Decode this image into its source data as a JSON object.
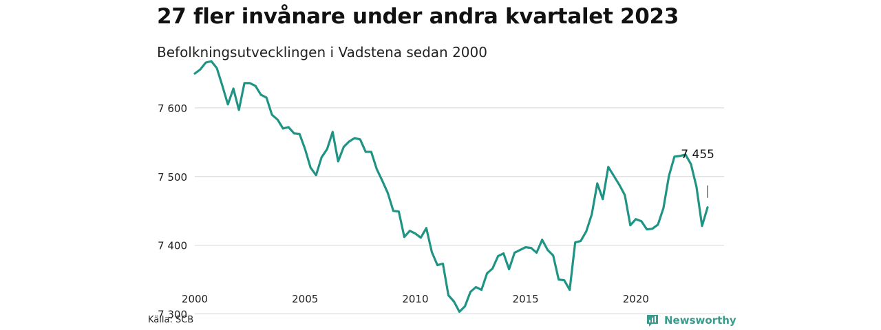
{
  "header": {
    "title": "27 fler invånare under andra kvartalet 2023",
    "subtitle": "Befolkningsutvecklingen i Vadstena sedan 2000"
  },
  "footer": {
    "source": "Källa: SCB",
    "brand": "Newsworthy",
    "brand_icon": "newsworthy-logo-icon"
  },
  "colors": {
    "line": "#1f9485",
    "grid": "#dddddd",
    "brand": "#3a9a8c"
  },
  "chart_data": {
    "type": "line",
    "title": "27 fler invånare under andra kvartalet 2023",
    "subtitle": "Befolkningsutvecklingen i Vadstena sedan 2000",
    "xlabel": "",
    "ylabel": "",
    "xlim": [
      2000,
      2024
    ],
    "ylim": [
      7290,
      7680
    ],
    "y_ticks": [
      7300,
      7400,
      7500,
      7600
    ],
    "y_tick_labels": [
      "7 300",
      "7 400",
      "7 500",
      "7 600"
    ],
    "x_ticks": [
      2000,
      2005,
      2010,
      2015,
      2020
    ],
    "x_tick_labels": [
      "2000",
      "2005",
      "2010",
      "2015",
      "2020"
    ],
    "grid": true,
    "annotation": {
      "x": 2023.25,
      "y": 7455,
      "label": "7 455"
    },
    "series": [
      {
        "x": [
          2000.0,
          2000.25,
          2000.5,
          2000.75,
          2001.0,
          2001.25,
          2001.5,
          2001.75,
          2002.0,
          2002.25,
          2002.5,
          2002.75,
          2003.0,
          2003.25,
          2003.5,
          2003.75,
          2004.0,
          2004.25,
          2004.5,
          2004.75,
          2005.0,
          2005.25,
          2005.5,
          2005.75,
          2006.0,
          2006.25,
          2006.5,
          2006.75,
          2007.0,
          2007.25,
          2007.5,
          2007.75,
          2008.0,
          2008.25,
          2008.5,
          2008.75,
          2009.0,
          2009.25,
          2009.5,
          2009.75,
          2010.0,
          2010.25,
          2010.5,
          2010.75,
          2011.0,
          2011.25,
          2011.5,
          2011.75,
          2012.0,
          2012.25,
          2012.5,
          2012.75,
          2013.0,
          2013.25,
          2013.5,
          2013.75,
          2014.0,
          2014.25,
          2014.5,
          2014.75,
          2015.0,
          2015.25,
          2015.5,
          2015.75,
          2016.0,
          2016.25,
          2016.5,
          2016.75,
          2017.0,
          2017.25,
          2017.5,
          2017.75,
          2018.0,
          2018.25,
          2018.5,
          2018.75,
          2019.0,
          2019.25,
          2019.5,
          2019.75,
          2020.0,
          2020.25,
          2020.5,
          2020.75,
          2021.0,
          2021.25,
          2021.5,
          2021.75,
          2022.0,
          2022.25,
          2022.5,
          2022.75,
          2023.0,
          2023.25
        ],
        "values": [
          7650,
          7656,
          7666,
          7668,
          7658,
          7632,
          7605,
          7628,
          7597,
          7636,
          7636,
          7632,
          7619,
          7615,
          7590,
          7583,
          7570,
          7572,
          7563,
          7562,
          7540,
          7513,
          7502,
          7528,
          7540,
          7565,
          7522,
          7543,
          7551,
          7556,
          7554,
          7536,
          7536,
          7511,
          7494,
          7476,
          7450,
          7449,
          7412,
          7421,
          7417,
          7411,
          7425,
          7390,
          7371,
          7373,
          7327,
          7318,
          7303,
          7311,
          7332,
          7339,
          7335,
          7359,
          7366,
          7384,
          7388,
          7365,
          7389,
          7393,
          7397,
          7396,
          7389,
          7408,
          7393,
          7385,
          7350,
          7349,
          7335,
          7404,
          7406,
          7420,
          7445,
          7490,
          7467,
          7514,
          7501,
          7488,
          7473,
          7429,
          7438,
          7435,
          7423,
          7424,
          7430,
          7454,
          7501,
          7529,
          7530,
          7532,
          7518,
          7485,
          7428,
          7455
        ]
      }
    ]
  }
}
